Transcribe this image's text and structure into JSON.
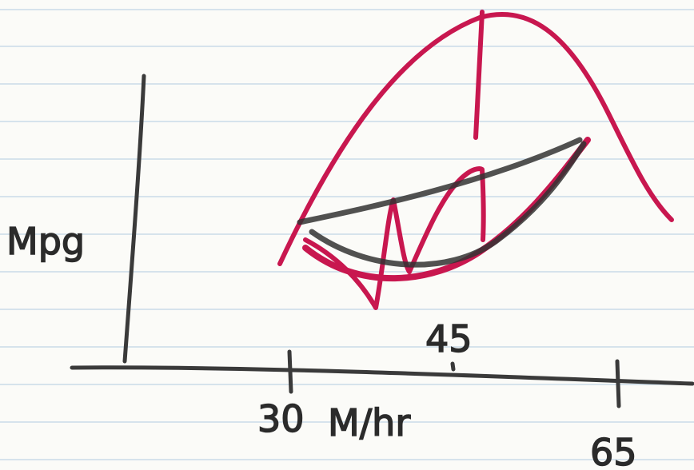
{
  "y_label": "Mpg",
  "x_label": "M/hr",
  "x_ticks": [
    "30",
    "45",
    "65"
  ]
}
